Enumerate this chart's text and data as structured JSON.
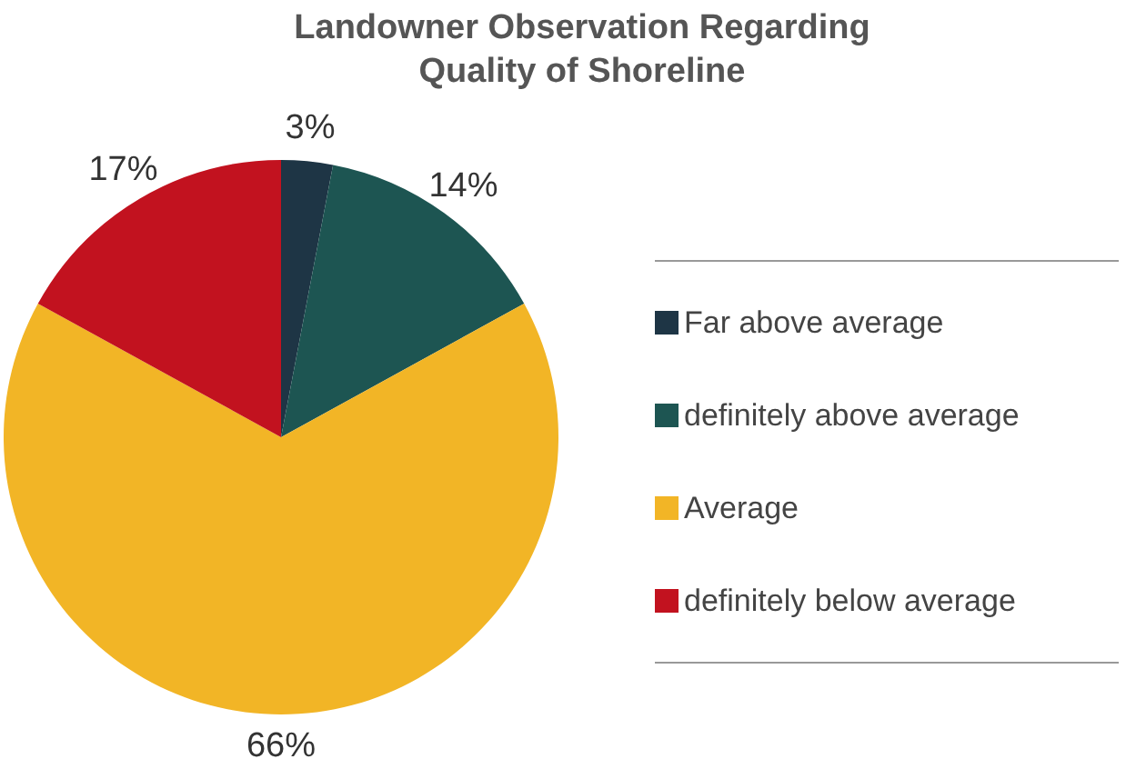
{
  "chart_data": {
    "type": "pie",
    "title": "Landowner Observation Regarding Quality of Shoreline",
    "categories": [
      "Far above average",
      "definitely above average",
      "Average",
      "definitely below average"
    ],
    "values": [
      3,
      14,
      66,
      17
    ],
    "value_labels": [
      "3%",
      "14%",
      "66%",
      "17%"
    ],
    "colors": [
      "#1e3545",
      "#1d5552",
      "#f2b526",
      "#c2121f"
    ],
    "legend": "right"
  }
}
